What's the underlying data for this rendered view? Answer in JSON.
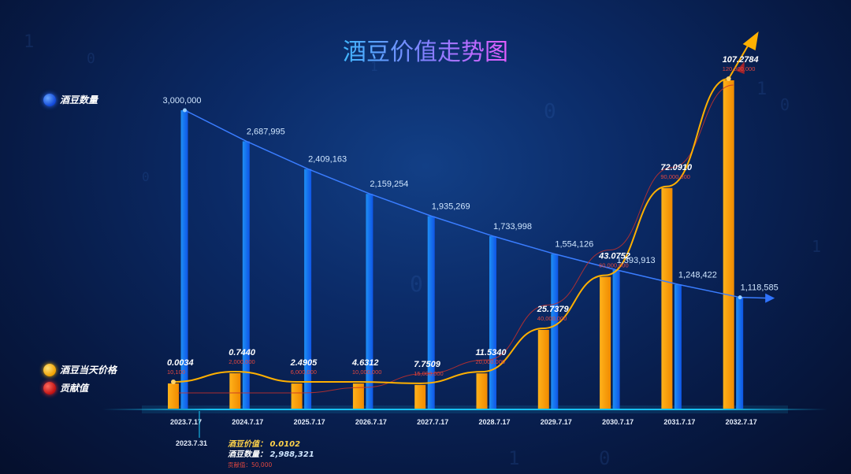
{
  "chart_data": {
    "type": "bar",
    "title": "酒豆价值走势图",
    "categories": [
      "2023.7.17",
      "2024.7.17",
      "2025.7.17",
      "2026.7.17",
      "2027.7.17",
      "2028.7.17",
      "2029.7.17",
      "2030.7.17",
      "2031.7.17",
      "2032.7.17"
    ],
    "series": [
      {
        "name": "酒豆数量",
        "color": "#1a7ff0",
        "values": [
          3000000,
          2687995,
          2409163,
          2159254,
          1935269,
          1733998,
          1554126,
          1393913,
          1248422,
          1118585
        ],
        "labels": [
          "3,000,000",
          "2,687,995",
          "2,409,163",
          "2,159,254",
          "1,935,269",
          "1,733,998",
          "1,554,126",
          "1,393,913",
          "1,248,422",
          "1,118,585"
        ]
      },
      {
        "name": "酒豆当天价格",
        "color": "#ffa800",
        "values": [
          0.0034,
          0.744,
          2.4905,
          4.6312,
          7.7509,
          11.534,
          25.7379,
          43.0752,
          72.091,
          107.2784
        ],
        "labels": [
          "0.0034",
          "0.7440",
          "2.4905",
          "4.6312",
          "7.7509",
          "11.5340",
          "25.7379",
          "43.0752",
          "72.0910",
          "107.2784"
        ]
      },
      {
        "name": "贡献值",
        "color": "#d9322b",
        "values": [
          10100,
          2000000,
          6000000,
          10000000,
          15000000,
          20000000,
          40000000,
          60000000,
          90000000,
          120000000
        ],
        "labels": [
          "10,100",
          "2,000,000",
          "6,000,000",
          "10,000,000",
          "15,000,000",
          "20,000,000",
          "40,000,000",
          "60,000,000",
          "90,000,000",
          "120,000,000"
        ]
      }
    ],
    "annotation": {
      "date": "2023.7.31",
      "price_key": "酒豆价值：",
      "price_value": "0.0102",
      "qty_key": "酒豆数量：",
      "qty_value": "2,988,321",
      "contrib_text": "贡献值：50,000"
    },
    "legend_position": "left",
    "grid": false
  }
}
